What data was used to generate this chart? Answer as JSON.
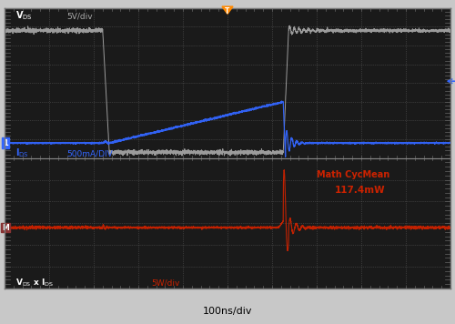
{
  "bg_color": "#1a1a1a",
  "outer_bg": "#c8c8c8",
  "grid_color": "#666666",
  "vds_color": "#aaaaaa",
  "ids_color": "#3366ff",
  "power_color": "#cc2200",
  "trigger_color": "#ff8800",
  "label_vds_scale": "5V/div",
  "label_ids_scale": "500mA/DIV",
  "label_power_scale": "5W/div",
  "label_timebase": "100ns/div",
  "math_label": "Math CycMean",
  "math_value": "117.4mW",
  "arrow_color": "#3366ff",
  "transition1": 2.2,
  "transition2": 6.25,
  "vds_high": 6.8,
  "vds_low": 0.3,
  "ids_zero": 0.8,
  "pwr_zero": 2.8,
  "noise_amp": 0.06
}
